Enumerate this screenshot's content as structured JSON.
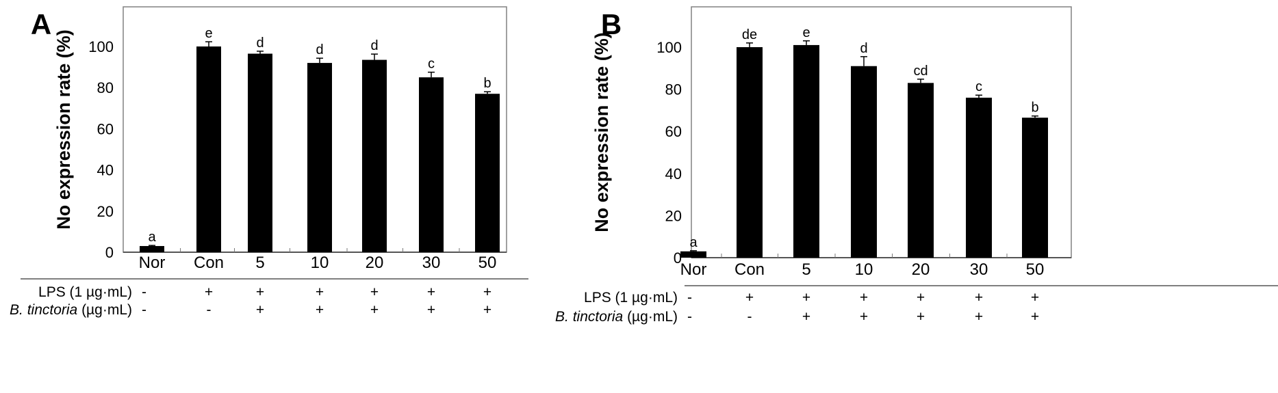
{
  "chart_data": [
    {
      "type": "bar",
      "panel_label": "A",
      "ylabel": "No expression rate (%)",
      "xlabel": "",
      "ylim": [
        0,
        120
      ],
      "yticks": [
        0,
        20,
        40,
        60,
        80,
        100
      ],
      "categories": [
        "Nor",
        "Con",
        "5",
        "10",
        "20",
        "30",
        "50"
      ],
      "values": [
        3,
        100,
        96.5,
        92,
        93.5,
        85,
        77
      ],
      "errors": [
        0.3,
        2.3,
        1.2,
        2.3,
        2.8,
        2.5,
        1.0
      ],
      "significance": [
        "a",
        "e",
        "d",
        "d",
        "d",
        "c",
        "b"
      ],
      "treatment_rows": [
        {
          "label": "LPS (1 µg·mL)",
          "label_italic": "",
          "values": [
            "-",
            "+",
            "+",
            "+",
            "+",
            "+",
            "+"
          ]
        },
        {
          "label": " (µg·mL)",
          "label_italic": "B. tinctoria",
          "values": [
            "-",
            "-",
            "+",
            "+",
            "+",
            "+",
            "+"
          ]
        }
      ],
      "bar_color": "#000000",
      "grid": false
    },
    {
      "type": "bar",
      "panel_label": "B",
      "ylabel": "No expression rate (%)",
      "xlabel": "",
      "ylim": [
        0,
        120
      ],
      "yticks": [
        0,
        20,
        40,
        60,
        80,
        100
      ],
      "categories": [
        "Nor",
        "Con",
        "5",
        "10",
        "20",
        "30",
        "50"
      ],
      "values": [
        3,
        100,
        101,
        91,
        83,
        76,
        66.5
      ],
      "errors": [
        0.3,
        2.0,
        2.0,
        4.5,
        1.8,
        1.2,
        0.8
      ],
      "significance": [
        "a",
        "de",
        "e",
        "d",
        "cd",
        "c",
        "b"
      ],
      "treatment_rows": [
        {
          "label": "LPS (1 µg·mL)",
          "label_italic": "",
          "values": [
            "-",
            "+",
            "+",
            "+",
            "+",
            "+",
            "+"
          ]
        },
        {
          "label": " (µg·mL)",
          "label_italic": "B. tinctoria",
          "values": [
            "-",
            "-",
            "+",
            "+",
            "+",
            "+",
            "+"
          ]
        }
      ],
      "bar_color": "#000000",
      "grid": false
    }
  ]
}
